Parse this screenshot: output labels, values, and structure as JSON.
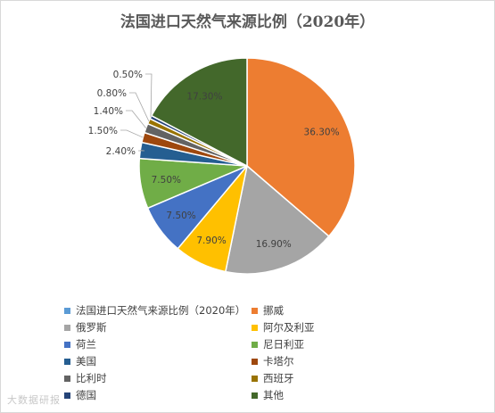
{
  "chart_data": {
    "type": "pie",
    "title": "法国进口天然气来源比例（2020年）",
    "series_name": "法国进口天然气来源比例（2020年）",
    "colors": {
      "series_legend": "#5b9bd5",
      "挪威": "#ed7d31",
      "俄罗斯": "#a5a5a5",
      "阿尔及利亚": "#ffc000",
      "荷兰": "#4472c4",
      "尼日利亚": "#70ad47",
      "美国": "#255e91",
      "卡塔尔": "#9e480e",
      "比利时": "#636363",
      "西班牙": "#997300",
      "德国": "#264478",
      "其他": "#43682b"
    },
    "slices": [
      {
        "label": "挪威",
        "value": 36.3,
        "display": "36.30%"
      },
      {
        "label": "俄罗斯",
        "value": 16.9,
        "display": "16.90%"
      },
      {
        "label": "阿尔及利亚",
        "value": 7.9,
        "display": "7.90%"
      },
      {
        "label": "荷兰",
        "value": 7.5,
        "display": "7.50%"
      },
      {
        "label": "尼日利亚",
        "value": 7.5,
        "display": "7.50%"
      },
      {
        "label": "美国",
        "value": 2.4,
        "display": "2.40%"
      },
      {
        "label": "卡塔尔",
        "value": 1.5,
        "display": "1.50%"
      },
      {
        "label": "比利时",
        "value": 1.4,
        "display": "1.40%"
      },
      {
        "label": "西班牙",
        "value": 0.8,
        "display": "0.80%"
      },
      {
        "label": "德国",
        "value": 0.5,
        "display": "0.50%"
      },
      {
        "label": "其他",
        "value": 17.3,
        "display": "17.30%"
      }
    ],
    "legend": [
      "法国进口天然气来源比例（2020年）",
      "挪威",
      "俄罗斯",
      "阿尔及利亚",
      "荷兰",
      "尼日利亚",
      "美国",
      "卡塔尔",
      "比利时",
      "西班牙",
      "德国",
      "其他"
    ],
    "legend_placement": "bottom"
  },
  "watermark": "大数据研报"
}
